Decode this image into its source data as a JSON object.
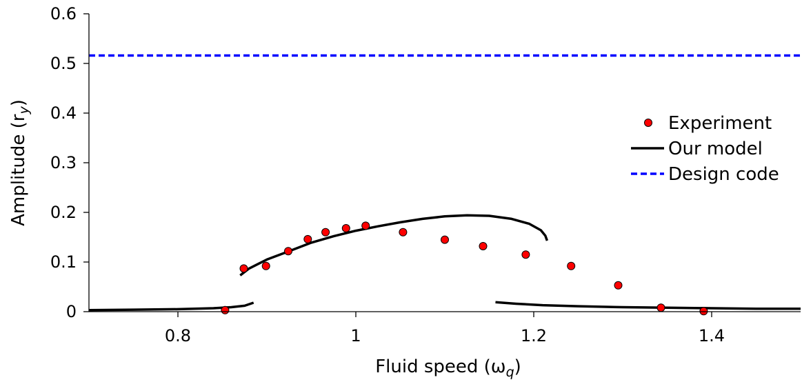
{
  "chart_data": {
    "type": "line",
    "xlabel": "Fluid speed (ω",
    "xlabel_sub": "q",
    "xlabel_close": ")",
    "ylabel": "Amplitude (r",
    "ylabel_sub": "y",
    "ylabel_close": ")",
    "xlim": [
      0.7,
      1.5
    ],
    "ylim": [
      0,
      0.6
    ],
    "xticks": [
      {
        "value": 0.8,
        "label": "0.8"
      },
      {
        "value": 1.0,
        "label": "1"
      },
      {
        "value": 1.2,
        "label": "1.2"
      },
      {
        "value": 1.4,
        "label": "1.4"
      }
    ],
    "yticks": [
      {
        "value": 0,
        "label": "0"
      },
      {
        "value": 0.1,
        "label": "0.1"
      },
      {
        "value": 0.2,
        "label": "0.2"
      },
      {
        "value": 0.3,
        "label": "0.3"
      },
      {
        "value": 0.4,
        "label": "0.4"
      },
      {
        "value": 0.5,
        "label": "0.5"
      },
      {
        "value": 0.6,
        "label": "0.6"
      }
    ],
    "grid": false,
    "legend_position": "right",
    "series": [
      {
        "name": "Experiment",
        "kind": "scatter",
        "color": "#ff0000",
        "edge_color": "#000000",
        "points": [
          [
            0.853,
            0.003
          ],
          [
            0.874,
            0.087
          ],
          [
            0.899,
            0.092
          ],
          [
            0.924,
            0.122
          ],
          [
            0.946,
            0.146
          ],
          [
            0.966,
            0.16
          ],
          [
            0.989,
            0.168
          ],
          [
            1.011,
            0.173
          ],
          [
            1.053,
            0.16
          ],
          [
            1.1,
            0.145
          ],
          [
            1.143,
            0.132
          ],
          [
            1.191,
            0.115
          ],
          [
            1.242,
            0.092
          ],
          [
            1.295,
            0.053
          ],
          [
            1.343,
            0.008
          ],
          [
            1.391,
            0.001
          ]
        ]
      },
      {
        "name": "Our model",
        "kind": "line",
        "color": "#000000",
        "style": "solid",
        "segments": [
          [
            [
              0.7,
              0.003
            ],
            [
              0.75,
              0.004
            ],
            [
              0.8,
              0.005
            ],
            [
              0.84,
              0.007
            ],
            [
              0.86,
              0.009
            ],
            [
              0.875,
              0.012
            ],
            [
              0.885,
              0.018
            ]
          ],
          [
            [
              0.87,
              0.073
            ],
            [
              0.88,
              0.087
            ],
            [
              0.9,
              0.105
            ],
            [
              0.925,
              0.122
            ],
            [
              0.95,
              0.139
            ],
            [
              0.975,
              0.152
            ],
            [
              1.0,
              0.163
            ],
            [
              1.025,
              0.172
            ],
            [
              1.05,
              0.18
            ],
            [
              1.075,
              0.187
            ],
            [
              1.1,
              0.192
            ],
            [
              1.125,
              0.194
            ],
            [
              1.15,
              0.193
            ],
            [
              1.175,
              0.187
            ],
            [
              1.195,
              0.177
            ],
            [
              1.208,
              0.164
            ],
            [
              1.213,
              0.153
            ],
            [
              1.215,
              0.143
            ]
          ],
          [
            [
              1.157,
              0.019
            ],
            [
              1.18,
              0.016
            ],
            [
              1.21,
              0.013
            ],
            [
              1.25,
              0.011
            ],
            [
              1.3,
              0.009
            ],
            [
              1.35,
              0.008
            ],
            [
              1.4,
              0.007
            ],
            [
              1.45,
              0.006
            ],
            [
              1.5,
              0.006
            ]
          ]
        ]
      },
      {
        "name": "Design code",
        "kind": "line",
        "color": "#0000ff",
        "style": "dashed",
        "segments": [
          [
            [
              0.7,
              0.516
            ],
            [
              1.5,
              0.516
            ]
          ]
        ]
      }
    ]
  }
}
